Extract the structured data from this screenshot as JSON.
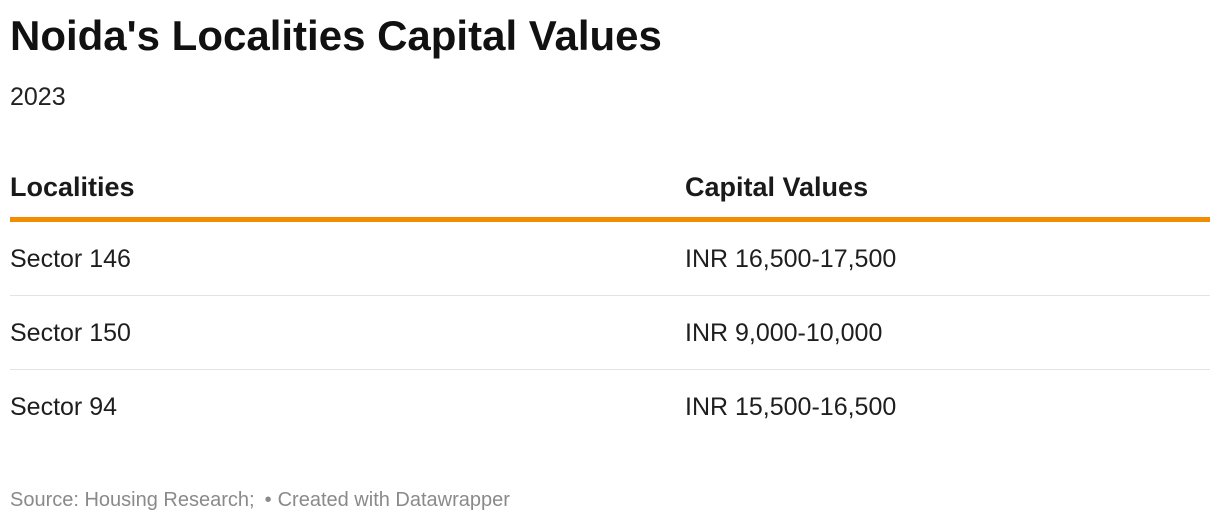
{
  "header": {
    "title": "Noida's Localities Capital Values",
    "subtitle": "2023"
  },
  "chart_data": {
    "type": "table",
    "columns": [
      "Localities",
      "Capital Values"
    ],
    "rows": [
      [
        "Sector 146",
        "INR 16,500-17,500"
      ],
      [
        "Sector 150",
        "INR 9,000-10,000"
      ],
      [
        "Sector 94",
        "INR 15,500-16,500"
      ]
    ],
    "header_rule_color": "#f28c00"
  },
  "footer": {
    "source": "Source: Housing Research;",
    "dot": "•",
    "credit": "Created with Datawrapper"
  }
}
